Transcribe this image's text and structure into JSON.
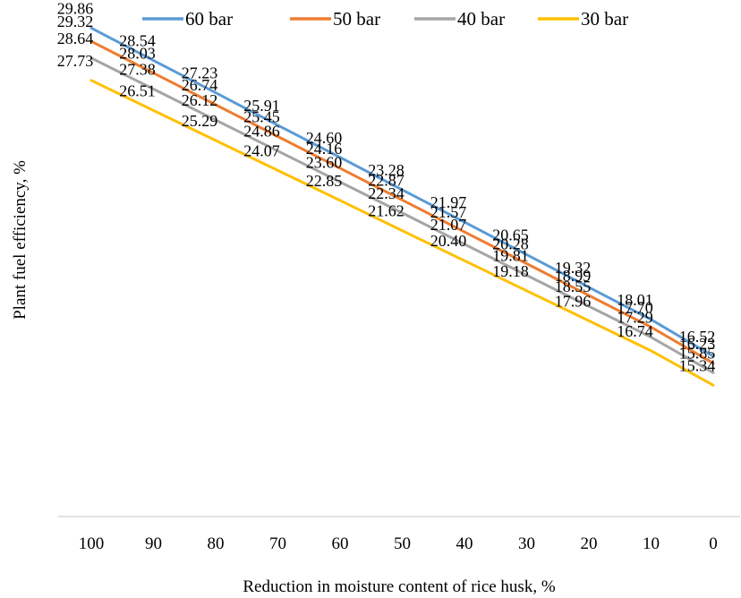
{
  "chart_data": {
    "type": "line",
    "xlabel": "Reduction in moisture content of rice husk, %",
    "ylabel": "Plant fuel efficiency, %",
    "categories": [
      "100",
      "90",
      "80",
      "70",
      "60",
      "50",
      "40",
      "30",
      "20",
      "10",
      "0"
    ],
    "ylim": [
      10,
      31
    ],
    "grid": false,
    "legend_position": "top",
    "series": [
      {
        "name": "60 bar",
        "color": "#5b9bd5",
        "values": [
          29.86,
          28.54,
          27.23,
          25.91,
          24.6,
          23.28,
          21.97,
          20.65,
          19.32,
          18.01,
          16.52
        ],
        "labels": [
          "29.86",
          "28.54",
          "27.23",
          "25.91",
          "24.60",
          "23.28",
          "21.97",
          "20.65",
          "19.32",
          "18.01",
          "16.52"
        ]
      },
      {
        "name": "50 bar",
        "color": "#ed7d31",
        "values": [
          29.32,
          28.03,
          26.74,
          25.45,
          24.16,
          22.87,
          21.57,
          20.28,
          18.99,
          17.7,
          16.23
        ],
        "labels": [
          "29.32",
          "28.03",
          "26.74",
          "25.45",
          "24.16",
          "22.87",
          "21.57",
          "20.28",
          "18.99",
          "17.70",
          "16.23"
        ]
      },
      {
        "name": "40 bar",
        "color": "#a5a5a5",
        "values": [
          28.64,
          27.38,
          26.12,
          24.86,
          23.6,
          22.34,
          21.07,
          19.81,
          18.55,
          17.29,
          15.85
        ],
        "labels": [
          "28.64",
          "27.38",
          "26.12",
          "24.86",
          "23.60",
          "22.34",
          "21.07",
          "19.81",
          "18.55",
          "17.29",
          "15.85"
        ]
      },
      {
        "name": "30 bar",
        "color": "#ffc000",
        "values": [
          27.73,
          26.51,
          25.29,
          24.07,
          22.85,
          21.62,
          20.4,
          19.18,
          17.96,
          16.74,
          15.34
        ],
        "labels": [
          "27.73",
          "26.51",
          "25.29",
          "24.07",
          "22.85",
          "21.62",
          "20.40",
          "19.18",
          "17.96",
          "16.74",
          "15.34"
        ]
      }
    ]
  }
}
